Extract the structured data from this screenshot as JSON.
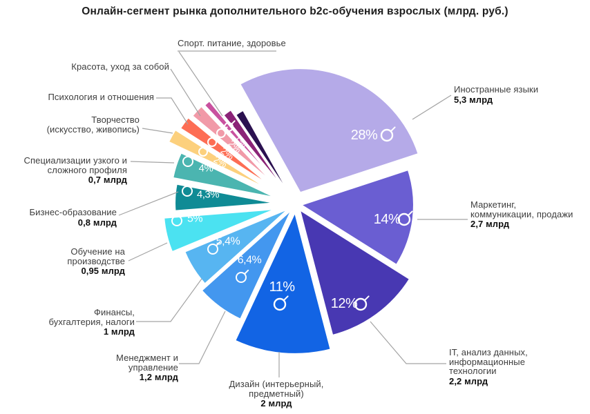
{
  "title": "Онлайн-сегмент рынка дополнительного b2c-обучения взрослых  (млрд. руб.)",
  "colors": {
    "background": "#ffffff",
    "title_text": "#1d1d1d",
    "label_text": "#3d3d3d",
    "value_text": "#0f0f0f",
    "pct_text": "#ffffff",
    "leader_line": "#a3a3a3"
  },
  "chart_data": {
    "type": "pie",
    "title": "Онлайн-сегмент рынка дополнительного b2c-обучения взрослых (млрд. руб.)",
    "unit": "млрд. руб.",
    "legend_position": "callouts-around-pie",
    "start_angle_deg": 331,
    "slices": [
      {
        "id": "foreign",
        "label": "Иностранные языки",
        "label_lines": [
          "Иностранные языки"
        ],
        "amount": "5,3 млрд",
        "value_bln": 5.3,
        "pct": 28,
        "pct_label": "28%",
        "color": "#b5aae8"
      },
      {
        "id": "marketing",
        "label": "Маркетинг, коммуникации, продажи",
        "label_lines": [
          "Маркетинг,",
          "коммуникации, продажи"
        ],
        "amount": "2,7 млрд",
        "value_bln": 2.7,
        "pct": 14,
        "pct_label": "14%",
        "color": "#6a5ed2"
      },
      {
        "id": "it",
        "label": "IT, анализ данных, информационные технологии",
        "label_lines": [
          "IT, анализ данных,",
          "информационные",
          "технологии"
        ],
        "amount": "2,2 млрд",
        "value_bln": 2.2,
        "pct": 12,
        "pct_label": "12%",
        "color": "#4838b2"
      },
      {
        "id": "design",
        "label": "Дизайн (интерьерный, предметный)",
        "label_lines": [
          "Дизайн (интерьерный,",
          "предметный)"
        ],
        "amount": "2 млрд",
        "value_bln": 2,
        "pct": 11,
        "pct_label": "11%",
        "color": "#1264e4"
      },
      {
        "id": "management",
        "label": "Менеджмент и управление",
        "label_lines": [
          "Менеджмент и",
          "управление"
        ],
        "amount": "1,2 млрд",
        "value_bln": 1.2,
        "pct": 6.4,
        "pct_label": "6,4%",
        "color": "#4397ef"
      },
      {
        "id": "finance",
        "label": "Финансы, бухгалтерия, налоги",
        "label_lines": [
          "Финансы,",
          "бухгалтерия, налоги"
        ],
        "amount": "1 млрд",
        "value_bln": 1,
        "pct": 5.4,
        "pct_label": "5,4%",
        "color": "#57b5f1"
      },
      {
        "id": "production",
        "label": "Обучение на производстве",
        "label_lines": [
          "Обучение на",
          "производстве"
        ],
        "amount": "0,95 млрд",
        "value_bln": 0.95,
        "pct": 5,
        "pct_label": "5%",
        "color": "#4be2f1"
      },
      {
        "id": "business",
        "label": "Бизнес-образование",
        "label_lines": [
          "Бизнес-образование"
        ],
        "amount": "0,8 млрд",
        "value_bln": 0.8,
        "pct": 4.3,
        "pct_label": "4,3%",
        "color": "#0f8b95"
      },
      {
        "id": "specialization",
        "label": "Специализации узкого и сложного профиля",
        "label_lines": [
          "Специализации узкого и",
          "сложного профиля"
        ],
        "amount": "0,7 млрд",
        "value_bln": 0.7,
        "pct": 4,
        "pct_label": "4%",
        "color": "#4bb5b0"
      },
      {
        "id": "creativity",
        "label": "Творчество (искусство, живопись)",
        "label_lines": [
          "Творчество",
          "(искусство, живопись)"
        ],
        "amount": null,
        "pct": 2,
        "pct_label": "2%",
        "color": "#fcd07d"
      },
      {
        "id": "psychology",
        "label": "Психология и отношения",
        "label_lines": [
          "Психология и отношения"
        ],
        "amount": null,
        "pct": 2,
        "pct_label": "2%",
        "color": "#fd6d54"
      },
      {
        "id": "beauty",
        "label": "Красота, уход за собой",
        "label_lines": [
          "Красота, уход за собой"
        ],
        "amount": null,
        "pct": 2,
        "pct_label": "2%",
        "color": "#f19aa8"
      },
      {
        "id": "sport",
        "label": "Спорт. питание, здоровье",
        "label_lines": [
          "Спорт. питание, здоровье"
        ],
        "amount": null,
        "pct": 1,
        "pct_label": "1%",
        "color": "#c9519f"
      },
      {
        "id": "other-dark-plum",
        "label": "",
        "label_lines": [],
        "amount": null,
        "pct": 1.5,
        "pct_label": "",
        "color": "#8b2377"
      },
      {
        "id": "other-dark-navy",
        "label": "",
        "label_lines": [],
        "amount": null,
        "pct": 1.4,
        "pct_label": "",
        "color": "#2b1150"
      }
    ]
  }
}
